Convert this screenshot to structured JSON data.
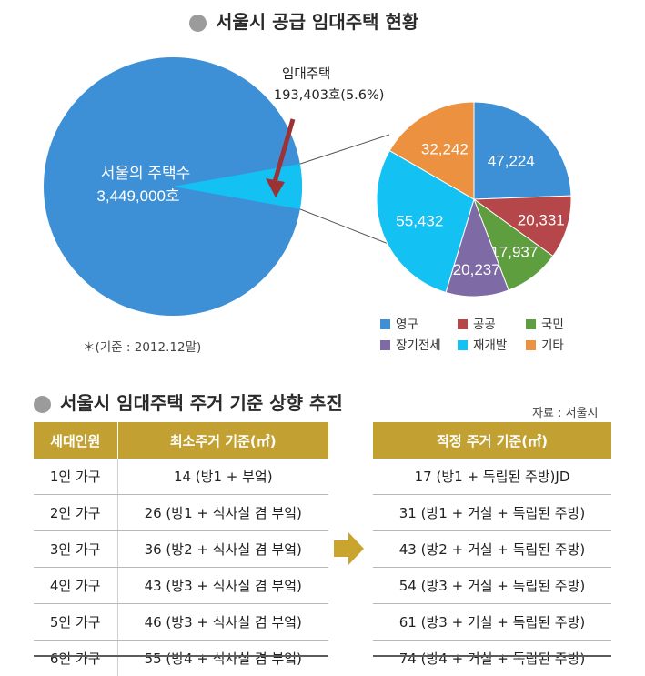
{
  "header": {
    "title": "서울시 공급 임대주택 현황"
  },
  "main_pie": {
    "total_label": "서울의 주택수",
    "total_value": "3,449,000호",
    "rental_label": "임대주택",
    "rental_value": "193,403호(5.6%)",
    "colors": {
      "main": "#3d8fd6",
      "slice": "#13c1f2",
      "arrow": "#9b3234"
    }
  },
  "chart_data": [
    {
      "type": "pie",
      "slices": [
        {
          "name": "서울의 주택수",
          "value": 3449000
        },
        {
          "name": "임대주택",
          "value": 193403,
          "percent": 5.6
        }
      ]
    },
    {
      "type": "pie",
      "slices": [
        {
          "name": "영구",
          "value": 47224,
          "color": "#3d8fd6"
        },
        {
          "name": "공공",
          "value": 20331,
          "color": "#b5474b"
        },
        {
          "name": "국민",
          "value": 17937,
          "color": "#5f9e3e"
        },
        {
          "name": "장기전세",
          "value": 20237,
          "color": "#7e6aa5"
        },
        {
          "name": "재개발",
          "value": 55432,
          "color": "#13c1f2"
        },
        {
          "name": "기타",
          "value": 32242,
          "color": "#ec9140"
        }
      ],
      "data_labels": [
        "47,224",
        "20,331",
        "17,937",
        "20,237",
        "55,432",
        "32,242"
      ],
      "legend_position": "bottom"
    }
  ],
  "footnote": "＊(기준 : 2012.12말)",
  "section2": {
    "title": "서울시 임대주택 주거 기준 상향 추진",
    "source": "자료 : 서울시"
  },
  "table_current": {
    "headers": [
      "세대인원",
      "최소주거 기준(㎡)"
    ],
    "rows": [
      [
        "1인 가구",
        "14 (방1 + 부엌)"
      ],
      [
        "2인 가구",
        "26 (방1 + 식사실 겸 부엌)"
      ],
      [
        "3인 가구",
        "36 (방2 + 식사실 겸 부엌)"
      ],
      [
        "4인 가구",
        "43 (방3 + 식사실 겸 부엌)"
      ],
      [
        "5인 가구",
        "46 (방3 + 식사실 겸 부엌)"
      ],
      [
        "6인 가구",
        "55 (방4 + 식사실 겸 부엌)"
      ]
    ]
  },
  "table_proposed": {
    "headers": [
      "적정 주거 기준(㎡)"
    ],
    "rows": [
      [
        "17 (방1 + 독립된 주방)JD"
      ],
      [
        "31 (방1 + 거실 + 독립된 주방)"
      ],
      [
        "43 (방2 + 거실 + 독립된 주방)"
      ],
      [
        "54 (방3 + 거실 + 독립된 주방)"
      ],
      [
        "61 (방3 + 거실 + 독립된 주방)"
      ],
      [
        "74 (방4 + 거실 + 독립된 주방)"
      ]
    ]
  },
  "colors": {
    "header_gold": "#c2a132",
    "arrow_gold": "#c9a52e"
  }
}
